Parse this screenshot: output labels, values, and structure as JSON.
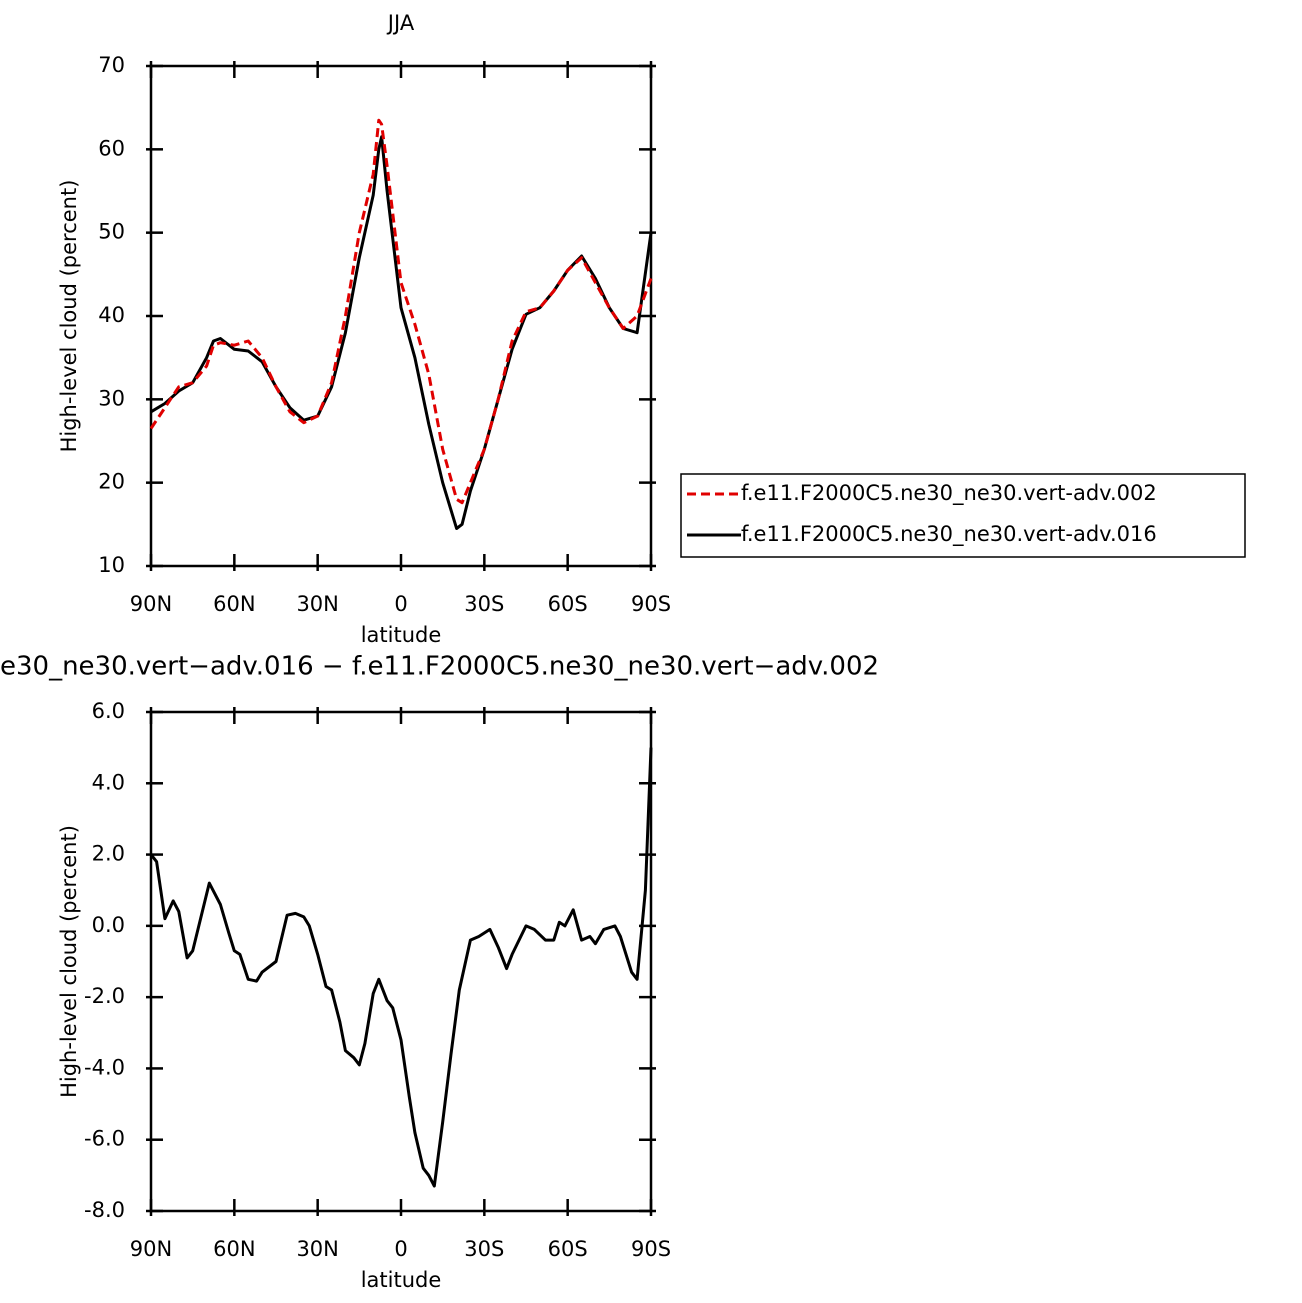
{
  "chart_data": [
    {
      "type": "line",
      "title": "JJA",
      "xlabel": "latitude",
      "ylabel": "High-level cloud (percent)",
      "x": [
        90,
        85,
        80,
        75,
        70,
        67.5,
        65,
        60,
        55,
        50,
        45,
        40,
        35,
        30,
        25,
        20,
        15,
        10,
        8,
        7,
        5,
        0,
        -5,
        -10,
        -15,
        -20,
        -22,
        -25,
        -30,
        -35,
        -40,
        -45,
        -50,
        -55,
        -60,
        -65,
        -70,
        -75,
        -80,
        -85,
        -90
      ],
      "series": [
        {
          "name": "f.e11.F2000C5.ne30_ne30.vert-adv.002",
          "color": "#e00000",
          "dash": true,
          "values": [
            26.5,
            29,
            31.5,
            32,
            34,
            36.5,
            36.8,
            36.5,
            37,
            35,
            31.5,
            28.5,
            27.2,
            28,
            32,
            40,
            50,
            57,
            63.5,
            63,
            58,
            44,
            39,
            33,
            24,
            18,
            17.6,
            20,
            24,
            30,
            37,
            40.5,
            41,
            43,
            45.5,
            47,
            44,
            41,
            38.5,
            40,
            44.5
          ]
        },
        {
          "name": "f.e11.F2000C5.ne30_ne30.vert-adv.016",
          "color": "#000000",
          "dash": false,
          "values": [
            28.5,
            29.5,
            31,
            32,
            35,
            37,
            37.3,
            36,
            35.8,
            34.5,
            31.5,
            29,
            27.5,
            28,
            31.5,
            38,
            47,
            54.5,
            60,
            61.5,
            55,
            41,
            35,
            27,
            20,
            14.5,
            15,
            19,
            24,
            30,
            36,
            40.2,
            41,
            43,
            45.5,
            47.2,
            44.5,
            41,
            38.5,
            38,
            50
          ]
        }
      ],
      "xlim": [
        90,
        -90
      ],
      "xticks": [
        {
          "value": 90,
          "label": "90N"
        },
        {
          "value": 60,
          "label": "60N"
        },
        {
          "value": 30,
          "label": "30N"
        },
        0,
        {
          "value": -30,
          "label": "30S"
        },
        {
          "value": -60,
          "label": "60S"
        },
        {
          "value": -90,
          "label": "90S"
        }
      ],
      "ylim": [
        10,
        70
      ],
      "yticks": [
        10,
        20,
        30,
        40,
        50,
        60,
        70
      ],
      "legend": "right"
    },
    {
      "type": "line",
      "title": "e30_ne30.vert−adv.016 − f.e11.F2000C5.ne30_ne30.vert−adv.002",
      "xlabel": "latitude",
      "ylabel": "High-level cloud (percent)",
      "x": [
        90,
        88,
        85,
        82,
        80,
        77,
        75,
        69,
        65,
        62,
        60,
        58,
        55,
        52,
        50,
        45,
        41,
        38,
        35,
        33,
        30,
        27,
        25,
        22,
        20,
        17,
        15,
        13,
        10,
        8,
        5,
        3,
        0,
        -3,
        -5,
        -8,
        -10,
        -12,
        -15,
        -18,
        -21,
        -25,
        -28,
        -32,
        -35,
        -38,
        -40,
        -45,
        -48,
        -52,
        -55,
        -57,
        -59,
        -62,
        -65,
        -68,
        -70,
        -73,
        -77,
        -79,
        -83,
        -85,
        -88,
        -90
      ],
      "values": [
        2.0,
        1.8,
        0.2,
        0.7,
        0.4,
        -0.9,
        -0.7,
        1.2,
        0.6,
        -0.2,
        -0.7,
        -0.8,
        -1.5,
        -1.55,
        -1.3,
        -1.0,
        0.3,
        0.35,
        0.25,
        0.0,
        -0.8,
        -1.7,
        -1.8,
        -2.7,
        -3.5,
        -3.7,
        -3.9,
        -3.3,
        -1.9,
        -1.5,
        -2.1,
        -2.3,
        -3.2,
        -4.8,
        -5.8,
        -6.8,
        -7.0,
        -7.3,
        -5.5,
        -3.6,
        -1.8,
        -0.4,
        -0.3,
        -0.1,
        -0.6,
        -1.2,
        -0.8,
        0.0,
        -0.1,
        -0.4,
        -0.4,
        0.1,
        0.0,
        0.45,
        -0.4,
        -0.3,
        -0.5,
        -0.1,
        0.0,
        -0.3,
        -1.3,
        -1.5,
        1.0,
        5.0
      ],
      "color": "#000000",
      "xlim": [
        90,
        -90
      ],
      "xticks": [
        {
          "value": 90,
          "label": "90N"
        },
        {
          "value": 60,
          "label": "60N"
        },
        {
          "value": 30,
          "label": "30N"
        },
        0,
        {
          "value": -30,
          "label": "30S"
        },
        {
          "value": -60,
          "label": "60S"
        },
        {
          "value": -90,
          "label": "90S"
        }
      ],
      "ylim": [
        -8,
        6
      ],
      "yticks": [
        {
          "value": -8,
          "label": "-8.0"
        },
        {
          "value": -6,
          "label": "-6.0"
        },
        {
          "value": -4,
          "label": "-4.0"
        },
        {
          "value": -2,
          "label": "-2.0"
        },
        {
          "value": 0,
          "label": "0.0"
        },
        {
          "value": 2,
          "label": "2.0"
        },
        {
          "value": 4,
          "label": "4.0"
        },
        {
          "value": 6,
          "label": "6.0"
        }
      ]
    }
  ]
}
